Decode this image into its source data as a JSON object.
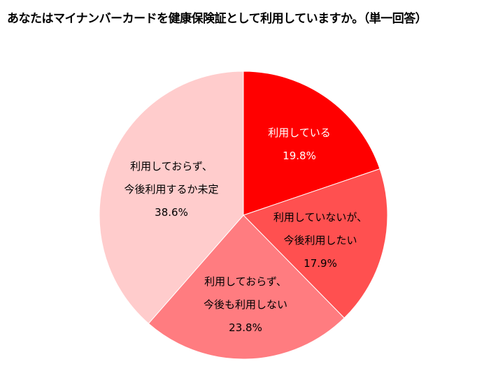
{
  "chart_data": {
    "type": "pie",
    "title": "あなたはマイナンバーカードを健康保険証として利用していますか。（単一回答）",
    "start_angle": "top, clockwise",
    "legend": "none (labels inside slices)",
    "slices": [
      {
        "label": [
          "利用している"
        ],
        "value": 19.8,
        "value_label": "19.8%",
        "color": "#FF0000",
        "text_color": "#FFFFFF"
      },
      {
        "label": [
          "利用していないが、",
          "今後利用したい"
        ],
        "value": 17.9,
        "value_label": "17.9%",
        "color": "#FF5050",
        "text_color": "#000000"
      },
      {
        "label": [
          "利用しておらず、",
          "今後も利用しない"
        ],
        "value": 23.8,
        "value_label": "23.8%",
        "color": "#FF7C80",
        "text_color": "#000000"
      },
      {
        "label": [
          "利用しておらず、",
          "今後利用するか未定"
        ],
        "value": 38.6,
        "value_label": "38.6%",
        "color": "#FFCCCC",
        "text_color": "#000000"
      }
    ]
  }
}
